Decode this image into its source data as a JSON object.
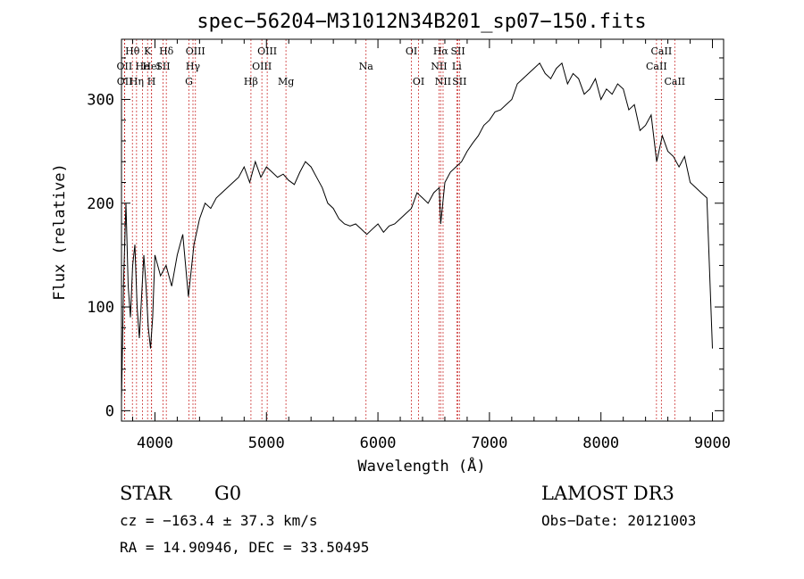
{
  "chart_data": {
    "type": "line",
    "title": "spec−56204−M31012N34B201_sp07−150.fits",
    "xlabel": "Wavelength (Å)",
    "ylabel": "Flux (relative)",
    "xlim": [
      3700,
      9100
    ],
    "ylim": [
      -10,
      358
    ],
    "x_ticks": [
      4000,
      5000,
      6000,
      7000,
      8000,
      9000
    ],
    "y_ticks": [
      0,
      100,
      200,
      300
    ],
    "x_tick_labels": [
      "4000",
      "5000",
      "6000",
      "7000",
      "8000",
      "9000"
    ],
    "y_tick_labels": [
      "0",
      "100",
      "200",
      "300"
    ],
    "grid": false,
    "series_color": "#000000",
    "line_color": "#cc3333",
    "series": [
      {
        "x": [
          3700,
          3720,
          3740,
          3760,
          3780,
          3800,
          3820,
          3840,
          3860,
          3880,
          3900,
          3920,
          3940,
          3960,
          3980,
          4000,
          4050,
          4100,
          4150,
          4200,
          4250,
          4300,
          4350,
          4400,
          4450,
          4500,
          4550,
          4600,
          4650,
          4700,
          4750,
          4800,
          4850,
          4900,
          4950,
          5000,
          5050,
          5100,
          5150,
          5200,
          5250,
          5300,
          5350,
          5400,
          5450,
          5500,
          5550,
          5600,
          5650,
          5700,
          5750,
          5800,
          5850,
          5900,
          5950,
          6000,
          6050,
          6100,
          6150,
          6200,
          6250,
          6300,
          6350,
          6400,
          6450,
          6500,
          6550,
          6563,
          6600,
          6650,
          6700,
          6750,
          6800,
          6850,
          6900,
          6950,
          7000,
          7050,
          7100,
          7150,
          7200,
          7250,
          7300,
          7350,
          7400,
          7450,
          7500,
          7550,
          7600,
          7650,
          7700,
          7750,
          7800,
          7850,
          7900,
          7950,
          8000,
          8050,
          8100,
          8150,
          8200,
          8250,
          8300,
          8350,
          8400,
          8450,
          8500,
          8550,
          8600,
          8650,
          8700,
          8750,
          8800,
          8850,
          8900,
          8950,
          9000
        ],
        "y": [
          10,
          130,
          200,
          120,
          90,
          140,
          160,
          100,
          70,
          110,
          150,
          120,
          80,
          60,
          90,
          150,
          130,
          140,
          120,
          150,
          170,
          110,
          160,
          185,
          200,
          195,
          205,
          210,
          215,
          220,
          225,
          235,
          220,
          240,
          225,
          235,
          230,
          225,
          228,
          222,
          218,
          230,
          240,
          235,
          225,
          215,
          200,
          195,
          185,
          180,
          178,
          180,
          175,
          170,
          175,
          180,
          172,
          178,
          180,
          185,
          190,
          195,
          210,
          205,
          200,
          210,
          215,
          180,
          220,
          230,
          235,
          240,
          250,
          258,
          265,
          275,
          280,
          288,
          290,
          295,
          300,
          315,
          320,
          325,
          330,
          335,
          325,
          320,
          330,
          335,
          315,
          325,
          320,
          305,
          310,
          320,
          300,
          310,
          305,
          315,
          310,
          290,
          295,
          270,
          275,
          285,
          240,
          265,
          250,
          245,
          235,
          245,
          220,
          215,
          210,
          205,
          60
        ]
      }
    ],
    "spectral_lines": [
      {
        "name": "Hθ",
        "wavelength": 3798,
        "row": 0
      },
      {
        "name": "OII",
        "wavelength": 3727,
        "row": 1
      },
      {
        "name": "OII",
        "wavelength": 3729,
        "row": 2
      },
      {
        "name": "He",
        "wavelength": 3889,
        "row": 1
      },
      {
        "name": "Hη",
        "wavelength": 3835,
        "row": 2
      },
      {
        "name": "K",
        "wavelength": 3934,
        "row": 0
      },
      {
        "name": "HeI",
        "wavelength": 3970,
        "row": 1
      },
      {
        "name": "H",
        "wavelength": 3969,
        "row": 2
      },
      {
        "name": "Hδ",
        "wavelength": 4102,
        "row": 0
      },
      {
        "name": "SII",
        "wavelength": 4072,
        "row": 1
      },
      {
        "name": "OIII",
        "wavelength": 4363,
        "row": 0
      },
      {
        "name": "Hγ",
        "wavelength": 4341,
        "row": 1
      },
      {
        "name": "G",
        "wavelength": 4305,
        "row": 2
      },
      {
        "name": "Hβ",
        "wavelength": 4861,
        "row": 2
      },
      {
        "name": "OIII",
        "wavelength": 5007,
        "row": 0
      },
      {
        "name": "OIII",
        "wavelength": 4959,
        "row": 1
      },
      {
        "name": "Mg",
        "wavelength": 5175,
        "row": 2
      },
      {
        "name": "Na",
        "wavelength": 5893,
        "row": 1
      },
      {
        "name": "OI",
        "wavelength": 6300,
        "row": 0
      },
      {
        "name": "OI",
        "wavelength": 6364,
        "row": 2
      },
      {
        "name": "Hα",
        "wavelength": 6563,
        "row": 0
      },
      {
        "name": "NII",
        "wavelength": 6548,
        "row": 1
      },
      {
        "name": "NII",
        "wavelength": 6584,
        "row": 2
      },
      {
        "name": "SII",
        "wavelength": 6717,
        "row": 0
      },
      {
        "name": "Li",
        "wavelength": 6707,
        "row": 1
      },
      {
        "name": "SII",
        "wavelength": 6731,
        "row": 2
      },
      {
        "name": "CaII",
        "wavelength": 8542,
        "row": 0
      },
      {
        "name": "CaII",
        "wavelength": 8498,
        "row": 1
      },
      {
        "name": "CaII",
        "wavelength": 8662,
        "row": 2
      }
    ]
  },
  "info": {
    "object_class": "STAR",
    "subclass": "G0",
    "survey": "LAMOST DR3",
    "redshift_line": "cz = −163.4 ± 37.3 km/s",
    "obs_date": "Obs−Date: 20121003",
    "coords": "RA =  14.90946, DEC =  33.50495"
  }
}
